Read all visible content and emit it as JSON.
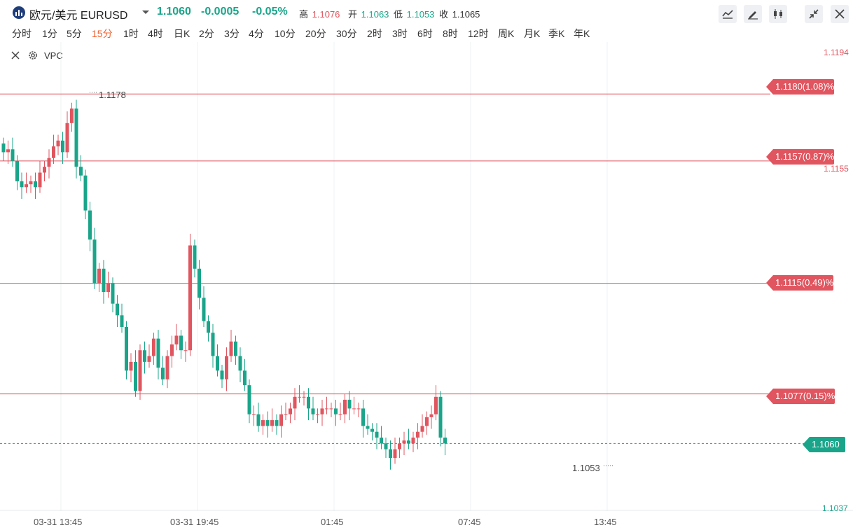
{
  "header": {
    "title": "欧元/美元",
    "symbol": "EURUSD",
    "price": "1.1060",
    "change": "-0.0005",
    "change_pct": "-0.05%",
    "high_label": "高",
    "high_value": "1.1076",
    "open_label": "开",
    "open_value": "1.1063",
    "low_label": "低",
    "low_value": "1.1053",
    "close_label": "收",
    "close_value": "1.1065",
    "colors": {
      "up": "#e0555f",
      "down": "#1aa58a",
      "active_period": "#f06432"
    },
    "toolbar_icons": [
      "line-chart-icon",
      "pen-icon",
      "candlestick-icon",
      "shrink-icon",
      "close-icon"
    ]
  },
  "periods": [
    "分时",
    "1分",
    "5分",
    "15分",
    "1时",
    "4时",
    "日K",
    "2分",
    "3分",
    "4分",
    "10分",
    "20分",
    "30分",
    "2时",
    "3时",
    "6时",
    "8时",
    "12时",
    "周K",
    "月K",
    "季K",
    "年K"
  ],
  "active_period": "15分",
  "indicator": {
    "name": "VPC",
    "icons": [
      "close-icon",
      "gear-icon"
    ]
  },
  "chart_data": {
    "type": "candlestick",
    "y_top_label": "1.1194",
    "y_bottom_label": "1.1037",
    "y_mid_label": "1.1155",
    "ylim": [
      1.1037,
      1.1194
    ],
    "x_tick_labels": [
      "03-31 13:45",
      "03-31 19:45",
      "01:45",
      "07:45",
      "13:45"
    ],
    "price_lines": [
      {
        "value": 1.118,
        "label": "1.1180(1.08)%"
      },
      {
        "value": 1.1157,
        "label": "1.1157(0.87)%"
      },
      {
        "value": 1.1115,
        "label": "1.1115(0.49)%"
      },
      {
        "value": 1.1077,
        "label": "1.1077(0.15)%"
      }
    ],
    "current_price": {
      "value": 1.106,
      "label": "1.1060"
    },
    "high_marker": "1.1178",
    "low_marker": "1.1053",
    "closes": [
      1.116,
      1.1161,
      1.1157,
      1.115,
      1.1148,
      1.1149,
      1.115,
      1.1148,
      1.1153,
      1.1155,
      1.1158,
      1.1162,
      1.1164,
      1.116,
      1.117,
      1.1175,
      1.1155,
      1.1152,
      1.114,
      1.113,
      1.1115,
      1.112,
      1.1112,
      1.1115,
      1.1108,
      1.1104,
      1.11,
      1.1085,
      1.1088,
      1.1078,
      1.1092,
      1.1088,
      1.109,
      1.1096,
      1.1086,
      1.1082,
      1.109,
      1.1094,
      1.1097,
      1.1092,
      1.1092,
      1.1128,
      1.112,
      1.111,
      1.1102,
      1.1098,
      1.109,
      1.1085,
      1.1082,
      1.109,
      1.1095,
      1.109,
      1.1085,
      1.108,
      1.107,
      1.107,
      1.1066,
      1.1068,
      1.1066,
      1.1068,
      1.1066,
      1.107,
      1.107,
      1.1072,
      1.1076,
      1.1076,
      1.1076,
      1.1072,
      1.107,
      1.107,
      1.1072,
      1.1072,
      1.1072,
      1.107,
      1.107,
      1.1075,
      1.1072,
      1.1072,
      1.1072,
      1.1066,
      1.1065,
      1.1064,
      1.1062,
      1.106,
      1.1058,
      1.1055,
      1.1058,
      1.106,
      1.1061,
      1.106,
      1.1062,
      1.1064,
      1.1066,
      1.1069,
      1.107,
      1.1076,
      1.1062,
      1.106
    ]
  }
}
